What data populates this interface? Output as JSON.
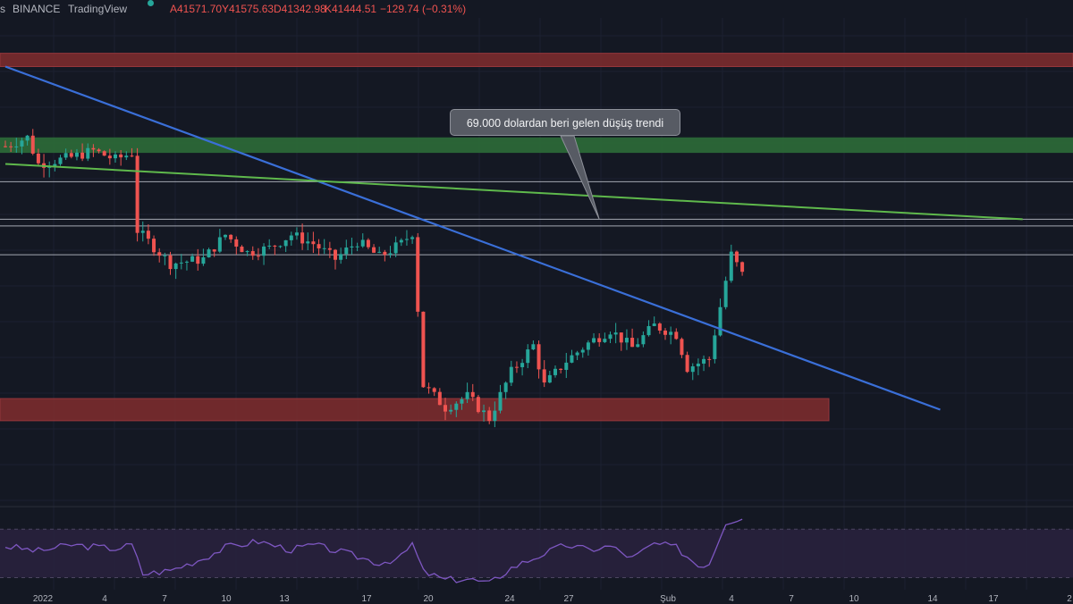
{
  "header": {
    "symbol_fragment": "s",
    "exchange": "BINANCE",
    "platform": "TradingView",
    "open": "A41571.70",
    "high": "Y41575.63",
    "low": "D41342.98",
    "close": "K41444.51",
    "change": "−129.74 (−0.31%)",
    "dot_color": "#26a69a"
  },
  "annotation": {
    "text": "69.000 dolardan beri gelen düşüş trendi"
  },
  "colors": {
    "background": "#141823",
    "up": "#26a69a",
    "down": "#ef5350",
    "resistance_zone": "#7a2b2e",
    "support_zone": "#7a2b2e",
    "green_zone": "#2c6b39",
    "downtrend_line": "#3a6fd8",
    "green_trendline": "#5fb94c",
    "horizontal_lines": "#c8ccd6",
    "rsi_line": "#7e57c2",
    "rsi_band": "#2a2340"
  },
  "chart_data": {
    "type": "candlestick",
    "x_tick_labels": [
      "2022",
      "4",
      "7",
      "10",
      "13",
      "17",
      "20",
      "24",
      "27",
      "Şub",
      "4",
      "7",
      "10",
      "14",
      "17",
      "2"
    ],
    "price_keypoints": [
      {
        "index": 0,
        "value": 47200
      },
      {
        "index": 4,
        "value": 47600
      },
      {
        "index": 6,
        "value": 46400
      },
      {
        "index": 12,
        "value": 46700
      },
      {
        "index": 16,
        "value": 47000
      },
      {
        "index": 20,
        "value": 46600
      },
      {
        "index": 23,
        "value": 46900
      },
      {
        "index": 24,
        "value": 43400
      },
      {
        "index": 30,
        "value": 41900
      },
      {
        "index": 36,
        "value": 42100
      },
      {
        "index": 40,
        "value": 43200
      },
      {
        "index": 44,
        "value": 42400
      },
      {
        "index": 48,
        "value": 42600
      },
      {
        "index": 52,
        "value": 43200
      },
      {
        "index": 56,
        "value": 42800
      },
      {
        "index": 60,
        "value": 42100
      },
      {
        "index": 64,
        "value": 42900
      },
      {
        "index": 68,
        "value": 42200
      },
      {
        "index": 72,
        "value": 42800
      },
      {
        "index": 74,
        "value": 43300
      },
      {
        "index": 76,
        "value": 36400
      },
      {
        "index": 80,
        "value": 35400
      },
      {
        "index": 84,
        "value": 35900
      },
      {
        "index": 88,
        "value": 34900
      },
      {
        "index": 92,
        "value": 37000
      },
      {
        "index": 96,
        "value": 38200
      },
      {
        "index": 98,
        "value": 36400
      },
      {
        "index": 102,
        "value": 37500
      },
      {
        "index": 106,
        "value": 38300
      },
      {
        "index": 110,
        "value": 38900
      },
      {
        "index": 114,
        "value": 38100
      },
      {
        "index": 118,
        "value": 39100
      },
      {
        "index": 122,
        "value": 38700
      },
      {
        "index": 124,
        "value": 37200
      },
      {
        "index": 128,
        "value": 37600
      },
      {
        "index": 132,
        "value": 42300
      },
      {
        "index": 134,
        "value": 41400
      }
    ],
    "rsi_keypoints": [
      {
        "index": 0,
        "value": 56
      },
      {
        "index": 6,
        "value": 52
      },
      {
        "index": 12,
        "value": 57
      },
      {
        "index": 20,
        "value": 54
      },
      {
        "index": 23,
        "value": 57
      },
      {
        "index": 25,
        "value": 33
      },
      {
        "index": 30,
        "value": 36
      },
      {
        "index": 36,
        "value": 46
      },
      {
        "index": 40,
        "value": 55
      },
      {
        "index": 46,
        "value": 60
      },
      {
        "index": 52,
        "value": 53
      },
      {
        "index": 56,
        "value": 57
      },
      {
        "index": 62,
        "value": 50
      },
      {
        "index": 68,
        "value": 42
      },
      {
        "index": 72,
        "value": 47
      },
      {
        "index": 74,
        "value": 58
      },
      {
        "index": 76,
        "value": 35
      },
      {
        "index": 80,
        "value": 28
      },
      {
        "index": 84,
        "value": 29
      },
      {
        "index": 88,
        "value": 25
      },
      {
        "index": 92,
        "value": 38
      },
      {
        "index": 98,
        "value": 50
      },
      {
        "index": 102,
        "value": 57
      },
      {
        "index": 106,
        "value": 53
      },
      {
        "index": 110,
        "value": 56
      },
      {
        "index": 114,
        "value": 46
      },
      {
        "index": 118,
        "value": 58
      },
      {
        "index": 122,
        "value": 55
      },
      {
        "index": 126,
        "value": 40
      },
      {
        "index": 128,
        "value": 42
      },
      {
        "index": 131,
        "value": 76
      },
      {
        "index": 134,
        "value": 80
      }
    ],
    "price_range": [
      31000,
      53000
    ],
    "rsi_range": [
      20,
      85
    ],
    "resistance_zone": [
      50800,
      51400
    ],
    "green_zone": [
      46900,
      47600
    ],
    "support_zone": [
      34800,
      35800
    ],
    "horizontal_levels": [
      45600,
      43900,
      43600,
      42300
    ],
    "downtrend_line": {
      "from": {
        "index": 0,
        "value": 50800
      },
      "to": {
        "index": 170,
        "value": 35300
      }
    },
    "green_trendline": {
      "from": {
        "index": 0,
        "value": 46400
      },
      "to": {
        "index": 185,
        "value": 43900
      }
    },
    "annotation_point": {
      "index": 108,
      "value": 43900
    },
    "grid": true
  }
}
